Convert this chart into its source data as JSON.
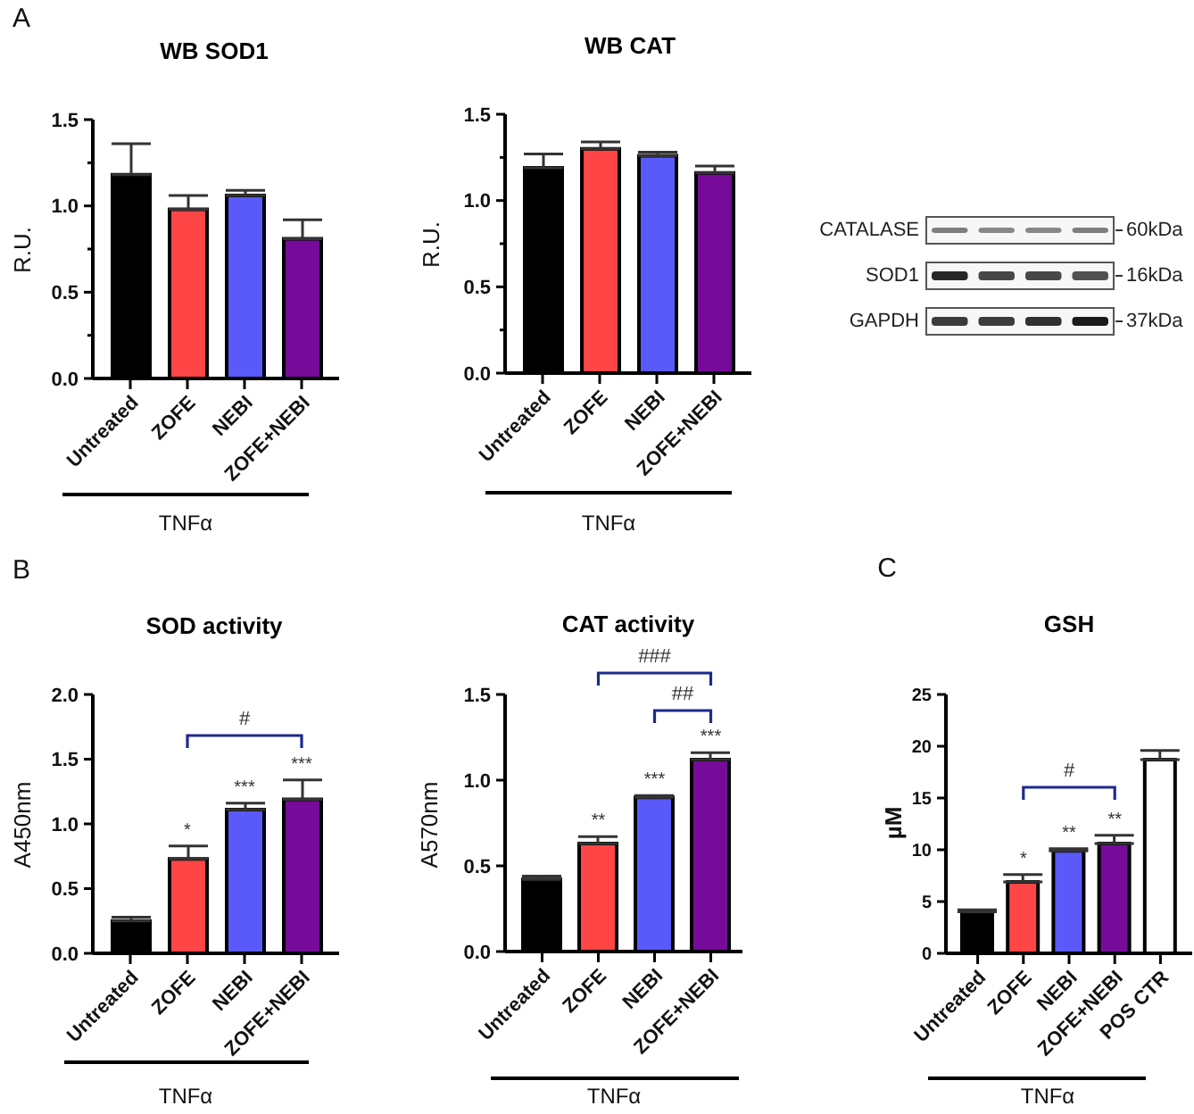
{
  "chart_data": [
    {
      "type": "bar",
      "title": "WB SOD1",
      "ylabel": "R.U.",
      "xlabel": "TNFα",
      "annotations": [
        "A"
      ],
      "categories": [
        "Untreated",
        "ZOFE",
        "NEBI",
        "ZOFE+NEBI"
      ],
      "values": [
        1.18,
        0.98,
        1.06,
        0.81
      ],
      "errors": [
        0.18,
        0.08,
        0.03,
        0.11
      ],
      "colors": [
        "#000000",
        "#ff4545",
        "#5a5afa",
        "#760b9a"
      ],
      "ylim": [
        0,
        1.5
      ],
      "yticks": [
        {
          "value": 0,
          "label": "0.0"
        },
        {
          "value": 0.25,
          "label": null
        },
        {
          "value": 0.5,
          "label": "0.5"
        },
        {
          "value": 0.75,
          "label": null
        },
        {
          "value": 1,
          "label": "1.0"
        },
        {
          "value": 1.25,
          "label": null
        },
        {
          "value": 1.5,
          "label": "1.5"
        }
      ]
    },
    {
      "type": "bar",
      "title": "WB CAT",
      "ylabel": "R.U.",
      "xlabel": "TNFα",
      "categories": [
        "Untreated",
        "ZOFE",
        "NEBI",
        "ZOFE+NEBI"
      ],
      "values": [
        1.19,
        1.3,
        1.26,
        1.16
      ],
      "errors": [
        0.08,
        0.04,
        0.02,
        0.04
      ],
      "colors": [
        "#000000",
        "#ff4545",
        "#5a5afa",
        "#760b9a"
      ],
      "ylim": [
        0,
        1.5
      ],
      "yticks": [
        {
          "value": 0,
          "label": "0.0"
        },
        {
          "value": 0.25,
          "label": null
        },
        {
          "value": 0.5,
          "label": "0.5"
        },
        {
          "value": 0.75,
          "label": null
        },
        {
          "value": 1,
          "label": "1.0"
        },
        {
          "value": 1.25,
          "label": null
        },
        {
          "value": 1.5,
          "label": "1.5"
        }
      ]
    },
    {
      "type": "other",
      "annotations": [
        "CATALASE",
        "60kDa",
        "SOD1",
        "16kDa",
        "GAPDH",
        "37kDa"
      ]
    },
    {
      "type": "bar",
      "title": "SOD activity",
      "ylabel": "A450nm",
      "xlabel": "TNFα",
      "annotations": [
        "B",
        "*",
        "***",
        "***",
        "#"
      ],
      "categories": [
        "Untreated",
        "ZOFE",
        "NEBI",
        "ZOFE+NEBI"
      ],
      "values": [
        0.25,
        0.73,
        1.11,
        1.19
      ],
      "errors": [
        0.03,
        0.1,
        0.05,
        0.15
      ],
      "colors": [
        "#000000",
        "#ff4545",
        "#5a5afa",
        "#760b9a"
      ],
      "ylim": [
        0,
        2
      ],
      "yticks": [
        {
          "value": 0,
          "label": "0.0"
        },
        {
          "value": 0.5,
          "label": "0.5"
        },
        {
          "value": 1,
          "label": "1.0"
        },
        {
          "value": 1.5,
          "label": "1.5"
        },
        {
          "value": 2,
          "label": "2.0"
        }
      ]
    },
    {
      "type": "bar",
      "title": "CAT activity",
      "ylabel": "A570nm",
      "xlabel": "TNFα",
      "annotations": [
        "**",
        "***",
        "***",
        "###",
        "##"
      ],
      "categories": [
        "Untreated",
        "ZOFE",
        "NEBI",
        "ZOFE+NEBI"
      ],
      "values": [
        0.42,
        0.63,
        0.9,
        1.12
      ],
      "errors": [
        0.02,
        0.04,
        0.01,
        0.04
      ],
      "colors": [
        "#000000",
        "#ff4545",
        "#5a5afa",
        "#760b9a"
      ],
      "ylim": [
        0,
        1.5
      ],
      "yticks": [
        {
          "value": 0,
          "label": "0.0"
        },
        {
          "value": 0.5,
          "label": "0.5"
        },
        {
          "value": 1,
          "label": "1.0"
        },
        {
          "value": 1.5,
          "label": "1.5"
        }
      ]
    },
    {
      "type": "bar",
      "title": "GSH",
      "ylabel": "µM",
      "xlabel": "TNFα",
      "annotations": [
        "C",
        "*",
        "**",
        "**",
        "#"
      ],
      "categories": [
        "Untreated",
        "ZOFE",
        "NEBI",
        "ZOFE+NEBI",
        "POS CTR"
      ],
      "values": [
        4.0,
        6.9,
        9.9,
        10.6,
        18.7
      ],
      "errors": [
        0.2,
        0.7,
        0.2,
        0.8,
        0.9
      ],
      "colors": [
        "#000000",
        "#ff4545",
        "#5a5afa",
        "#760b9a",
        "#ffffff"
      ],
      "ylim": [
        0,
        25
      ],
      "yticks": [
        0,
        5,
        10,
        15,
        20,
        25
      ]
    }
  ]
}
